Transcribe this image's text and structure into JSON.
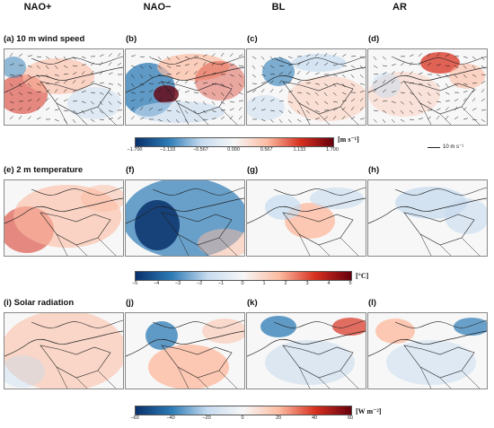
{
  "columns": [
    "NAO+",
    "NAO−",
    "BL",
    "AR"
  ],
  "rows": [
    {
      "title": "(a) 10 m wind speed",
      "labels": [
        "(a)",
        "(b)",
        "(c)",
        "(d)"
      ],
      "colorbar": {
        "ticks": [
          "−1.700",
          "−1.133",
          "−0.567",
          "0.000",
          "0.567",
          "1.133",
          "1.700"
        ],
        "unit": "[m s⁻¹]",
        "min": -1.7,
        "max": 1.7
      },
      "reference_vector": "10 m s⁻¹"
    },
    {
      "title": "(e) 2 m temperature",
      "labels": [
        "(f)",
        "(g)",
        "(h)"
      ],
      "colorbar": {
        "ticks": [
          "−5",
          "−4",
          "−3",
          "−2",
          "−1",
          "0",
          "1",
          "2",
          "3",
          "4",
          "5"
        ],
        "unit": "[°C]",
        "min": -5,
        "max": 5
      }
    },
    {
      "title": "(i) Solar radiation",
      "labels": [
        "(j)",
        "(k)",
        "(l)"
      ],
      "colorbar": {
        "ticks": [
          "−60",
          "−40",
          "−20",
          "0",
          "20",
          "40",
          "60"
        ],
        "unit": "[W m⁻²]",
        "min": -60,
        "max": 60
      }
    }
  ],
  "colors": {
    "deep_blue": "#08306b",
    "blue": "#2c7bb6",
    "light_blue": "#c6dbef",
    "white": "#f7f7f7",
    "light_red": "#fcbba1",
    "red": "#d7301f",
    "deep_red": "#67000d"
  }
}
